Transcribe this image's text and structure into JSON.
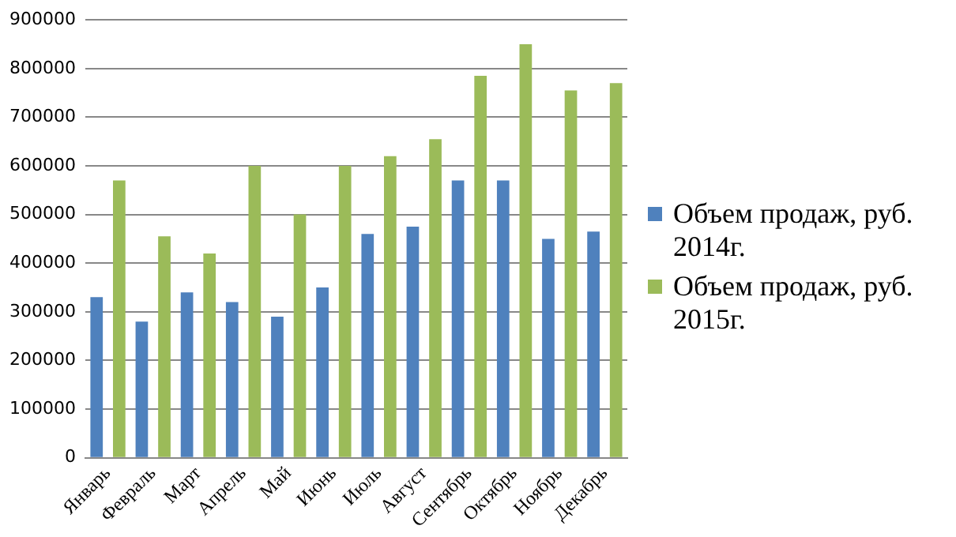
{
  "chart_data": {
    "type": "bar",
    "categories": [
      "Январь",
      "Февраль",
      "Март",
      "Апрель",
      "Май",
      "Июнь",
      "Июль",
      "Август",
      "Сентябрь",
      "Октябрь",
      "Ноябрь",
      "Декабрь"
    ],
    "series": [
      {
        "name": "Объем продаж, руб. 2014г.",
        "color": "#4f81bd",
        "values": [
          330000,
          280000,
          340000,
          320000,
          290000,
          350000,
          460000,
          475000,
          570000,
          570000,
          450000,
          465000
        ]
      },
      {
        "name": "Объем продаж, руб. 2015г.",
        "color": "#9bbb59",
        "values": [
          570000,
          455000,
          420000,
          600000,
          500000,
          600000,
          620000,
          655000,
          785000,
          850000,
          755000,
          770000
        ]
      }
    ],
    "ylim": [
      0,
      900000
    ],
    "yticks": [
      0,
      100000,
      200000,
      300000,
      400000,
      500000,
      600000,
      700000,
      800000,
      900000
    ],
    "grid": "y",
    "legend": "right"
  }
}
